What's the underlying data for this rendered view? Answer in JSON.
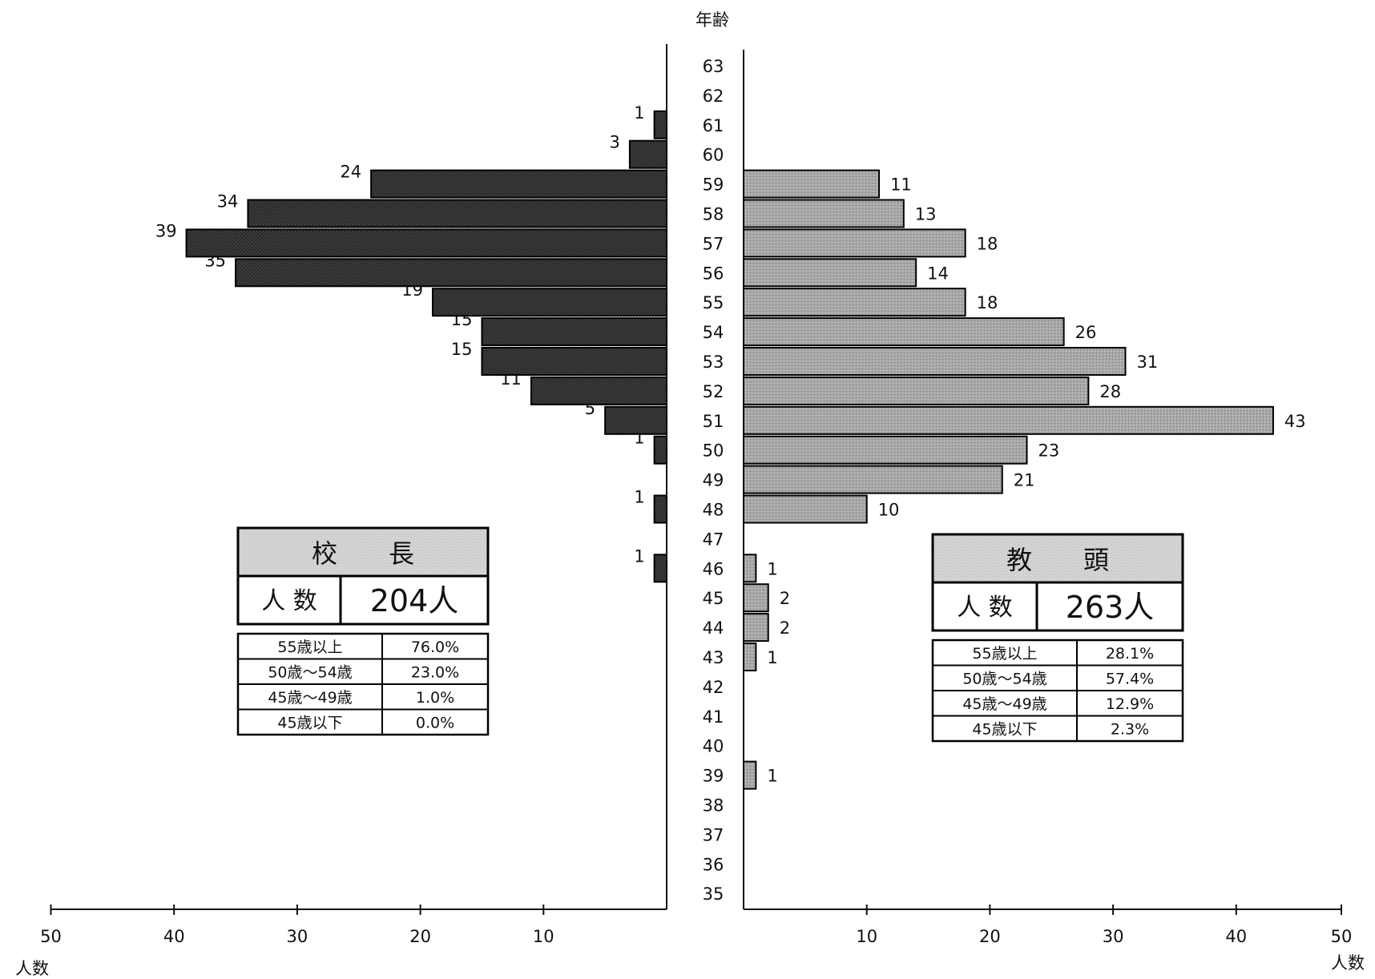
{
  "chart_data": {
    "type": "bar",
    "orientation": "horizontal-population-pyramid",
    "title": "",
    "age_axis_label": "年齢",
    "count_axis_label_left": "人数",
    "count_axis_label_right": "人数",
    "ages": [
      35,
      36,
      37,
      38,
      39,
      40,
      41,
      42,
      43,
      44,
      45,
      46,
      47,
      48,
      49,
      50,
      51,
      52,
      53,
      54,
      55,
      56,
      57,
      58,
      59,
      60,
      61,
      62,
      63
    ],
    "xlim": [
      0,
      50
    ],
    "x_ticks": [
      50,
      40,
      30,
      20,
      10
    ],
    "x_ticks_right": [
      10,
      20,
      30,
      40,
      50
    ],
    "series": [
      {
        "name": "校　長",
        "side": "left",
        "color": "#2b2b2b",
        "values": [
          0,
          0,
          0,
          0,
          0,
          0,
          0,
          0,
          0,
          0,
          0,
          1,
          0,
          1,
          0,
          1,
          5,
          11,
          15,
          15,
          19,
          35,
          39,
          34,
          24,
          3,
          1,
          0,
          0
        ]
      },
      {
        "name": "教　頭",
        "side": "right",
        "color": "#a9a9a9",
        "values": [
          0,
          0,
          0,
          0,
          1,
          0,
          0,
          0,
          1,
          2,
          2,
          1,
          0,
          10,
          21,
          23,
          43,
          28,
          31,
          26,
          18,
          14,
          18,
          13,
          11,
          0,
          0,
          0,
          0
        ]
      }
    ],
    "summaries": [
      {
        "title": "校　　長",
        "count_label": "人 数",
        "count_value": "204人",
        "rows": [
          {
            "range": "55歳以上",
            "pct": "76.0%"
          },
          {
            "range": "50歳～54歳",
            "pct": "23.0%"
          },
          {
            "range": "45歳～49歳",
            "pct": "1.0%"
          },
          {
            "range": "45歳以下",
            "pct": "0.0%"
          }
        ]
      },
      {
        "title": "教　　頭",
        "count_label": "人 数",
        "count_value": "263人",
        "rows": [
          {
            "range": "55歳以上",
            "pct": "28.1%"
          },
          {
            "range": "50歳～54歳",
            "pct": "57.4%"
          },
          {
            "range": "45歳～49歳",
            "pct": "12.9%"
          },
          {
            "range": "45歳以下",
            "pct": "2.3%"
          }
        ]
      }
    ],
    "grid": false,
    "legend": "none"
  }
}
